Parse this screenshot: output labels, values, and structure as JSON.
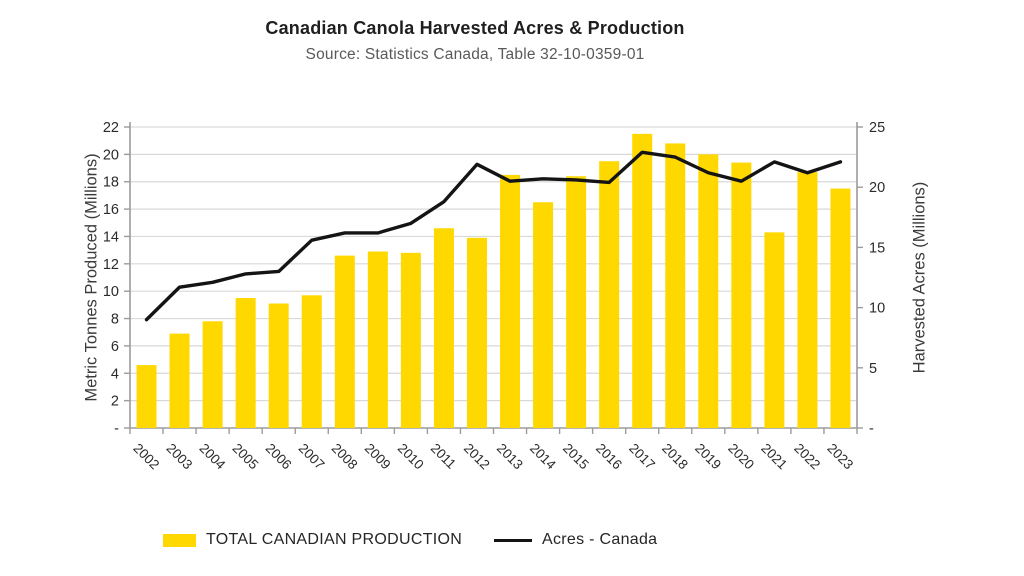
{
  "chart_data": {
    "type": "combo",
    "title": "Canadian Canola Harvested Acres & Production",
    "subtitle": "Source: Statistics Canada, Table 32-10-0359-01",
    "categories": [
      "2002",
      "2003",
      "2004",
      "2005",
      "2006",
      "2007",
      "2008",
      "2009",
      "2010",
      "2011",
      "2012",
      "2013",
      "2014",
      "2015",
      "2016",
      "2017",
      "2018",
      "2019",
      "2020",
      "2021",
      "2022",
      "2023"
    ],
    "series": [
      {
        "name": "TOTAL CANADIAN PRODUCTION",
        "type": "bar",
        "axis": "left",
        "color": "#FFD800",
        "values": [
          4.6,
          6.9,
          7.8,
          9.5,
          9.1,
          9.7,
          12.6,
          12.9,
          12.8,
          14.6,
          13.9,
          18.5,
          16.5,
          18.4,
          19.5,
          21.5,
          20.8,
          20.0,
          19.4,
          14.3,
          18.7,
          17.5
        ]
      },
      {
        "name": "Acres - Canada",
        "type": "line",
        "axis": "right",
        "color": "#141414",
        "values": [
          9.0,
          11.7,
          12.1,
          12.8,
          13.0,
          15.6,
          16.2,
          16.2,
          17.0,
          18.8,
          21.9,
          20.5,
          20.7,
          20.6,
          20.4,
          22.9,
          22.5,
          21.2,
          20.5,
          22.1,
          21.2,
          22.1
        ]
      }
    ],
    "left_axis": {
      "label": "Metric Tonnes Produced (Millions)",
      "min": 0,
      "max": 22,
      "tick_step": 2,
      "tick_labels": [
        "-",
        "2",
        "4",
        "6",
        "8",
        "10",
        "12",
        "14",
        "16",
        "18",
        "20",
        "22"
      ]
    },
    "right_axis": {
      "label": "Harvested Acres (Millions)",
      "min": 0,
      "max": 25,
      "tick_step": 5,
      "tick_labels": [
        "-",
        "5",
        "10",
        "15",
        "20",
        "25"
      ]
    },
    "grid": true,
    "legend_position": "bottom",
    "colors": {
      "gridline": "#d9d9d9",
      "axis": "#9b9b9b",
      "tick_text": "#2b2b2b"
    }
  }
}
